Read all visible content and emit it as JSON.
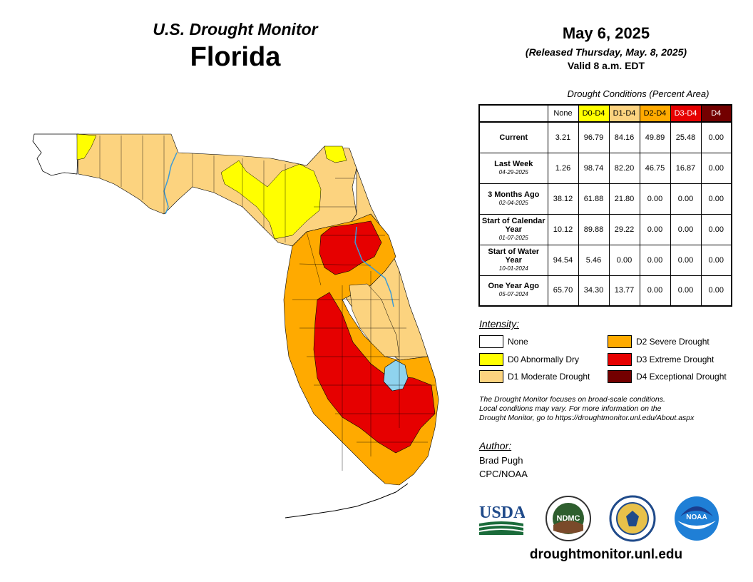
{
  "header": {
    "subtitle": "U.S. Drought Monitor",
    "title": "Florida",
    "date": "May 6, 2025",
    "released": "(Released Thursday, May. 8, 2025)",
    "valid": "Valid 8 a.m. EDT"
  },
  "table": {
    "caption": "Drought Conditions (Percent Area)",
    "columns": [
      {
        "label": "None",
        "color": "#ffffff",
        "text_color": "#000000"
      },
      {
        "label": "D0-D4",
        "color": "#ffff00",
        "text_color": "#000000"
      },
      {
        "label": "D1-D4",
        "color": "#fcd37f",
        "text_color": "#000000"
      },
      {
        "label": "D2-D4",
        "color": "#ffaa00",
        "text_color": "#000000"
      },
      {
        "label": "D3-D4",
        "color": "#e60000",
        "text_color": "#ffffff"
      },
      {
        "label": "D4",
        "color": "#730000",
        "text_color": "#ffffff"
      }
    ],
    "rows": [
      {
        "label": "Current",
        "date": "",
        "values": [
          "3.21",
          "96.79",
          "84.16",
          "49.89",
          "25.48",
          "0.00"
        ]
      },
      {
        "label": "Last Week",
        "date": "04-29-2025",
        "values": [
          "1.26",
          "98.74",
          "82.20",
          "46.75",
          "16.87",
          "0.00"
        ]
      },
      {
        "label": "3 Months Ago",
        "date": "02-04-2025",
        "values": [
          "38.12",
          "61.88",
          "21.80",
          "0.00",
          "0.00",
          "0.00"
        ]
      },
      {
        "label": "Start of Calendar Year",
        "date": "01-07-2025",
        "values": [
          "10.12",
          "89.88",
          "29.22",
          "0.00",
          "0.00",
          "0.00"
        ]
      },
      {
        "label": "Start of Water Year",
        "date": "10-01-2024",
        "values": [
          "94.54",
          "5.46",
          "0.00",
          "0.00",
          "0.00",
          "0.00"
        ]
      },
      {
        "label": "One Year Ago",
        "date": "05-07-2024",
        "values": [
          "65.70",
          "34.30",
          "13.77",
          "0.00",
          "0.00",
          "0.00"
        ]
      }
    ]
  },
  "legend": {
    "title": "Intensity:",
    "items": [
      {
        "label": "None",
        "color": "#ffffff"
      },
      {
        "label": "D0 Abnormally Dry",
        "color": "#ffff00"
      },
      {
        "label": "D1 Moderate Drought",
        "color": "#fcd37f"
      },
      {
        "label": "D2 Severe Drought",
        "color": "#ffaa00"
      },
      {
        "label": "D3 Extreme Drought",
        "color": "#e60000"
      },
      {
        "label": "D4 Exceptional Drought",
        "color": "#730000"
      }
    ]
  },
  "note": {
    "line1": "The Drought Monitor focuses on broad-scale conditions.",
    "line2": "Local conditions may vary. For more information on the",
    "line3": "Drought Monitor, go to https://droughtmonitor.unl.edu/About.aspx"
  },
  "author": {
    "title": "Author:",
    "name": "Brad Pugh",
    "org": "CPC/NOAA"
  },
  "logos": {
    "usda_text": "USDA",
    "ndmc_text": "NDMC",
    "noaa_text": "NOAA"
  },
  "website": "droughtmonitor.unl.edu",
  "map": {
    "colors": {
      "none": "#ffffff",
      "d0": "#ffff00",
      "d1": "#fcd37f",
      "d2": "#ffaa00",
      "d3": "#e60000",
      "water": "#8fd3ee",
      "river": "#3b9bd8"
    }
  }
}
